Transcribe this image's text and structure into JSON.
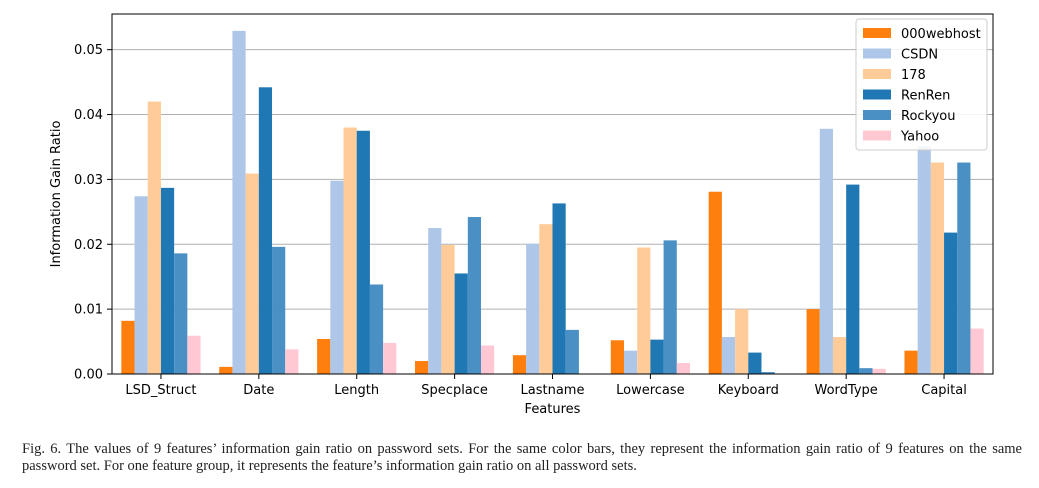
{
  "chart_data": {
    "type": "bar",
    "title": "",
    "xlabel": "Features",
    "ylabel": "Information Gain Ratio",
    "ylim": [
      0,
      0.0555
    ],
    "yticks": [
      0.0,
      0.01,
      0.02,
      0.03,
      0.04,
      0.05
    ],
    "ytick_labels": [
      "0.00",
      "0.01",
      "0.02",
      "0.03",
      "0.04",
      "0.05"
    ],
    "grid": "horizontal",
    "legend_position": "top-right",
    "categories": [
      "LSD_Struct",
      "Date",
      "Length",
      "Specplace",
      "Lastname",
      "Lowercase",
      "Keyboard",
      "WordType",
      "Capital"
    ],
    "series": [
      {
        "name": "000webhost",
        "color": "#ff7f0e",
        "values": [
          0.0082,
          0.0011,
          0.0054,
          0.002,
          0.0029,
          0.0052,
          0.0281,
          0.01,
          0.0036
        ]
      },
      {
        "name": "CSDN",
        "color": "#aec7e8",
        "values": [
          0.0274,
          0.0529,
          0.0298,
          0.0225,
          0.0201,
          0.0036,
          0.0057,
          0.0378,
          0.0351
        ]
      },
      {
        "name": "178",
        "color": "#ffcc99",
        "values": [
          0.042,
          0.0309,
          0.038,
          0.0199,
          0.0231,
          0.0195,
          0.01,
          0.0057,
          0.0326
        ]
      },
      {
        "name": "RenRen",
        "color": "#1f77b4",
        "values": [
          0.0287,
          0.0442,
          0.0375,
          0.0155,
          0.0263,
          0.0053,
          0.0033,
          0.0292,
          0.0218
        ]
      },
      {
        "name": "Rockyou",
        "color": "#4a90c4",
        "values": [
          0.0186,
          0.0196,
          0.0138,
          0.0242,
          0.0068,
          0.0206,
          0.0003,
          0.0009,
          0.0326
        ]
      },
      {
        "name": "Yahoo",
        "color": "#ffc8d2",
        "values": [
          0.0059,
          0.0038,
          0.0048,
          0.0044,
          0.0,
          0.0017,
          0.0,
          0.0008,
          0.007
        ]
      }
    ]
  },
  "caption": "Fig. 6.   The values of 9 features’ information gain ratio on password sets. For the same color bars, they represent the information gain ratio of 9 features on the same password set. For one feature group, it represents the feature’s information gain ratio on all password sets."
}
